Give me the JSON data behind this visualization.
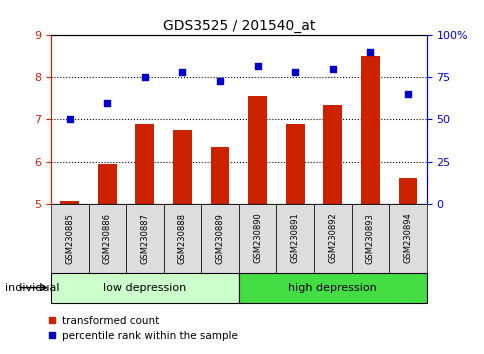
{
  "title": "GDS3525 / 201540_at",
  "samples": [
    "GSM230885",
    "GSM230886",
    "GSM230887",
    "GSM230888",
    "GSM230889",
    "GSM230890",
    "GSM230891",
    "GSM230892",
    "GSM230893",
    "GSM230894"
  ],
  "transformed_count": [
    5.05,
    5.95,
    6.9,
    6.75,
    6.35,
    7.55,
    6.9,
    7.35,
    8.5,
    5.6
  ],
  "percentile_rank": [
    50,
    60,
    75,
    78,
    73,
    82,
    78,
    80,
    90,
    65
  ],
  "ylim_left": [
    5,
    9
  ],
  "ylim_right": [
    0,
    100
  ],
  "yticks_left": [
    5,
    6,
    7,
    8,
    9
  ],
  "ytick_labels_right": [
    "0",
    "25",
    "50",
    "75",
    "100%"
  ],
  "yticks_right": [
    0,
    25,
    50,
    75,
    100
  ],
  "bar_color": "#cc2200",
  "scatter_color": "#0000cc",
  "bar_width": 0.5,
  "legend_label_bar": "transformed count",
  "legend_label_scatter": "percentile rank within the sample",
  "individual_label": "individual",
  "background_color": "#ffffff",
  "tick_label_color_left": "#cc2200",
  "tick_label_color_right": "#0000cc",
  "group_labels": [
    "low depression",
    "high depression"
  ],
  "group_colors": [
    "#ccffcc",
    "#44dd44"
  ],
  "group_ranges": [
    [
      0,
      5
    ],
    [
      5,
      10
    ]
  ],
  "label_bg_color": "#dddddd",
  "dotted_gridlines": [
    6,
    7,
    8
  ]
}
